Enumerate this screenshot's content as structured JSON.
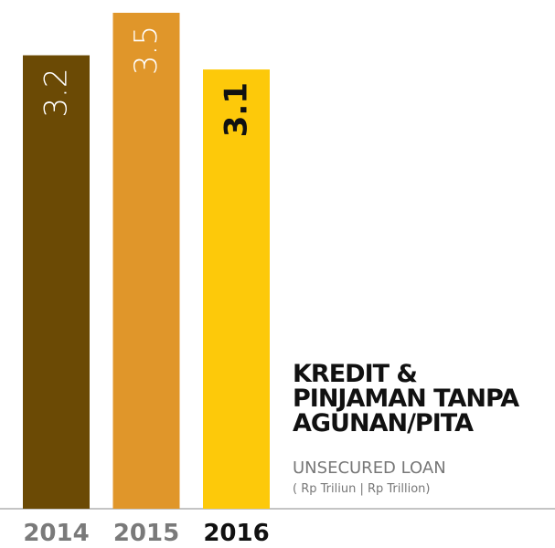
{
  "chart_data": {
    "type": "bar",
    "title_lines": [
      "KREDIT &",
      "PINJAMAN TANPA",
      "AGUNAN/PITA"
    ],
    "subtitle": "UNSECURED LOAN",
    "unit_note": "( Rp Triliun | Rp Trillion)",
    "categories": [
      "2014",
      "2015",
      "2016"
    ],
    "values": [
      3.2,
      3.5,
      3.1
    ],
    "colors": [
      "#6b4a05",
      "#e0962a",
      "#fdc90a"
    ]
  }
}
